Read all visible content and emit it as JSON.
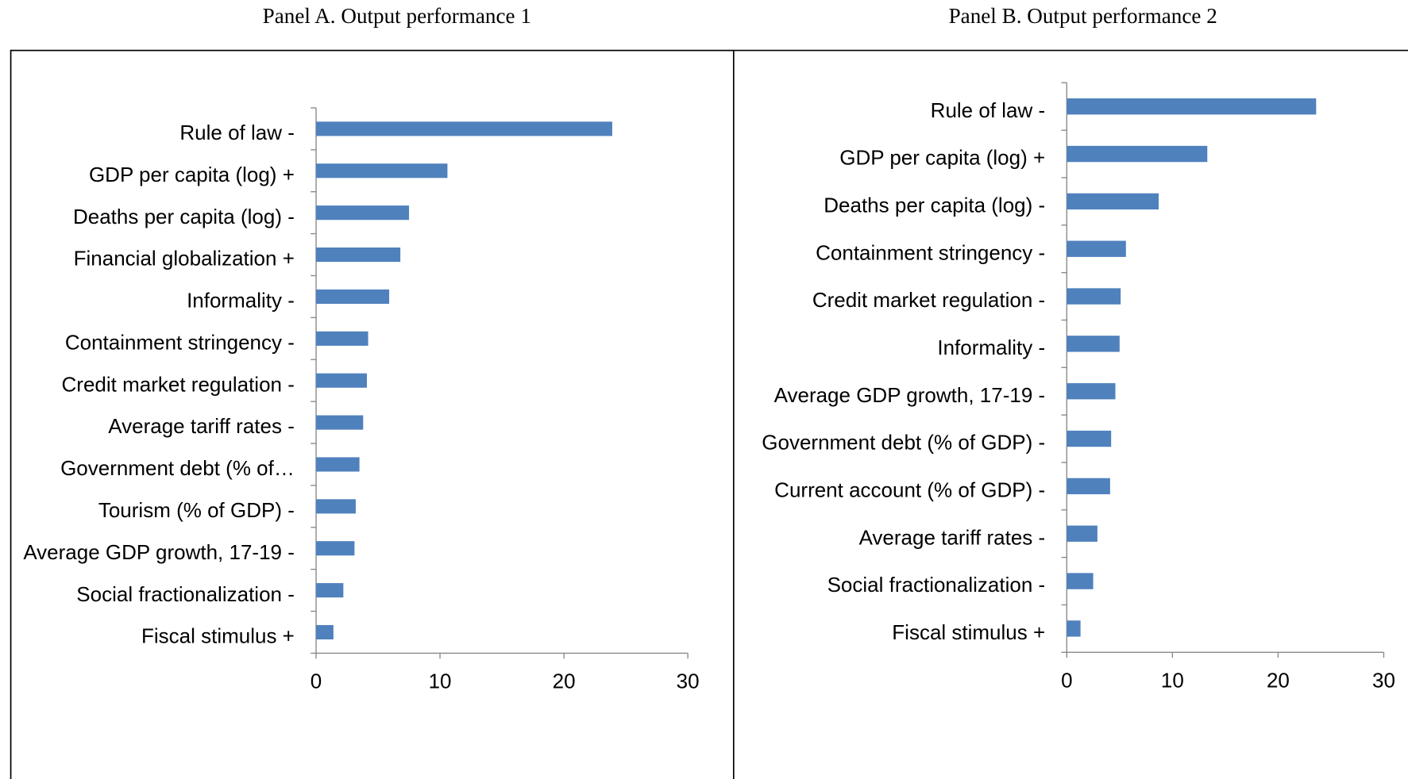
{
  "chart_data": [
    {
      "type": "bar",
      "orientation": "horizontal",
      "title": "Panel A. Output performance 1",
      "categories": [
        "Rule of law -",
        "GDP per capita (log) +",
        "Deaths per capita (log) -",
        "Financial globalization +",
        "Informality -",
        "Containment stringency -",
        "Credit market regulation -",
        "Average tariff rates -",
        "Government debt (% of…",
        "Tourism (% of GDP) -",
        "Average GDP growth, 17-19 -",
        "Social fractionalization -",
        "Fiscal stimulus +"
      ],
      "values": [
        23.9,
        10.6,
        7.5,
        6.8,
        5.9,
        4.2,
        4.1,
        3.8,
        3.5,
        3.2,
        3.1,
        2.2,
        1.4
      ],
      "color": "#4f81bd",
      "xlim": [
        0,
        30
      ],
      "xticks": [
        0,
        10,
        20,
        30
      ]
    },
    {
      "type": "bar",
      "orientation": "horizontal",
      "title": "Panel B. Output performance 2",
      "categories": [
        "Rule of law -",
        "GDP per capita (log) +",
        "Deaths per capita (log) -",
        "Containment stringency -",
        "Credit market regulation -",
        "Informality -",
        "Average GDP growth, 17-19 -",
        "Government debt (% of GDP) -",
        "Current account (% of GDP) -",
        "Average tariff rates -",
        "Social fractionalization -",
        "Fiscal stimulus +"
      ],
      "values": [
        23.6,
        13.3,
        8.7,
        5.6,
        5.1,
        5.0,
        4.6,
        4.2,
        4.1,
        2.9,
        2.5,
        1.3
      ],
      "color": "#4f81bd",
      "xlim": [
        0,
        30
      ],
      "xticks": [
        0,
        10,
        20,
        30
      ]
    }
  ]
}
